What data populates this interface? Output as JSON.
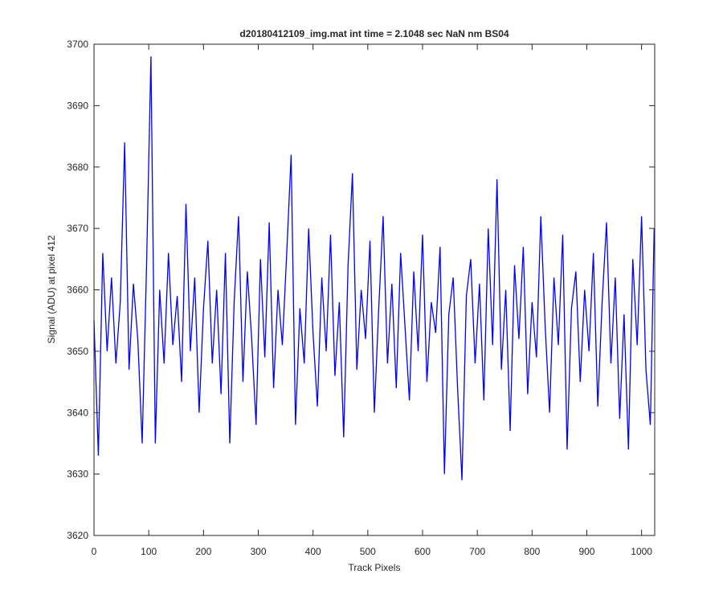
{
  "chart_data": {
    "type": "line",
    "title": "d20180412109_img.mat int time = 2.1048 sec  NaN nm BS04",
    "x_label": "Track Pixels",
    "y_label": "Signal (ADU) at pixel 412",
    "x": [
      0,
      8,
      16,
      24,
      32,
      40,
      48,
      56,
      64,
      72,
      80,
      88,
      96,
      104,
      112,
      120,
      128,
      136,
      144,
      152,
      160,
      168,
      176,
      184,
      192,
      200,
      208,
      216,
      224,
      232,
      240,
      248,
      256,
      264,
      272,
      280,
      288,
      296,
      304,
      312,
      320,
      328,
      336,
      344,
      352,
      360,
      368,
      376,
      384,
      392,
      400,
      408,
      416,
      424,
      432,
      440,
      448,
      456,
      464,
      472,
      480,
      488,
      496,
      504,
      512,
      520,
      528,
      536,
      544,
      552,
      560,
      568,
      576,
      584,
      592,
      600,
      608,
      616,
      624,
      632,
      640,
      648,
      656,
      664,
      672,
      680,
      688,
      696,
      704,
      712,
      720,
      728,
      736,
      744,
      752,
      760,
      768,
      776,
      784,
      792,
      800,
      808,
      816,
      824,
      832,
      840,
      848,
      856,
      864,
      872,
      880,
      888,
      896,
      904,
      912,
      920,
      928,
      936,
      944,
      952,
      960,
      968,
      976,
      984,
      992,
      1000,
      1008,
      1016,
      1023
    ],
    "series": [
      {
        "color": "#0000ff",
        "values": [
          3655,
          3633,
          3666,
          3650,
          3662,
          3648,
          3658,
          3684,
          3647,
          3661,
          3652,
          3635,
          3664,
          3698,
          3635,
          3660,
          3648,
          3666,
          3651,
          3659,
          3645,
          3674,
          3650,
          3662,
          3640,
          3657,
          3668,
          3648,
          3660,
          3643,
          3666,
          3635,
          3658,
          3672,
          3645,
          3663,
          3652,
          3638,
          3665,
          3649,
          3671,
          3644,
          3660,
          3651,
          3666,
          3682,
          3638,
          3657,
          3648,
          3670,
          3653,
          3641,
          3662,
          3650,
          3669,
          3646,
          3658,
          3636,
          3664,
          3679,
          3647,
          3660,
          3652,
          3668,
          3640,
          3657,
          3672,
          3648,
          3661,
          3644,
          3666,
          3654,
          3642,
          3663,
          3650,
          3669,
          3645,
          3658,
          3653,
          3667,
          3630,
          3656,
          3662,
          3644,
          3629,
          3659,
          3665,
          3648,
          3661,
          3642,
          3670,
          3651,
          3678,
          3647,
          3660,
          3637,
          3664,
          3652,
          3667,
          3643,
          3658,
          3649,
          3672,
          3654,
          3640,
          3662,
          3651,
          3669,
          3634,
          3657,
          3663,
          3645,
          3660,
          3650,
          3666,
          3641,
          3658,
          3671,
          3648,
          3662,
          3639,
          3656,
          3634,
          3665,
          3651,
          3672,
          3647,
          3638,
          3670
        ]
      }
    ],
    "xlim": [
      0,
      1024
    ],
    "ylim": [
      3620,
      3700
    ],
    "xticks": [
      0,
      100,
      200,
      300,
      400,
      500,
      600,
      700,
      800,
      900,
      1000
    ],
    "yticks": [
      3620,
      3630,
      3640,
      3650,
      3660,
      3670,
      3680,
      3690,
      3700
    ],
    "grid": false
  }
}
